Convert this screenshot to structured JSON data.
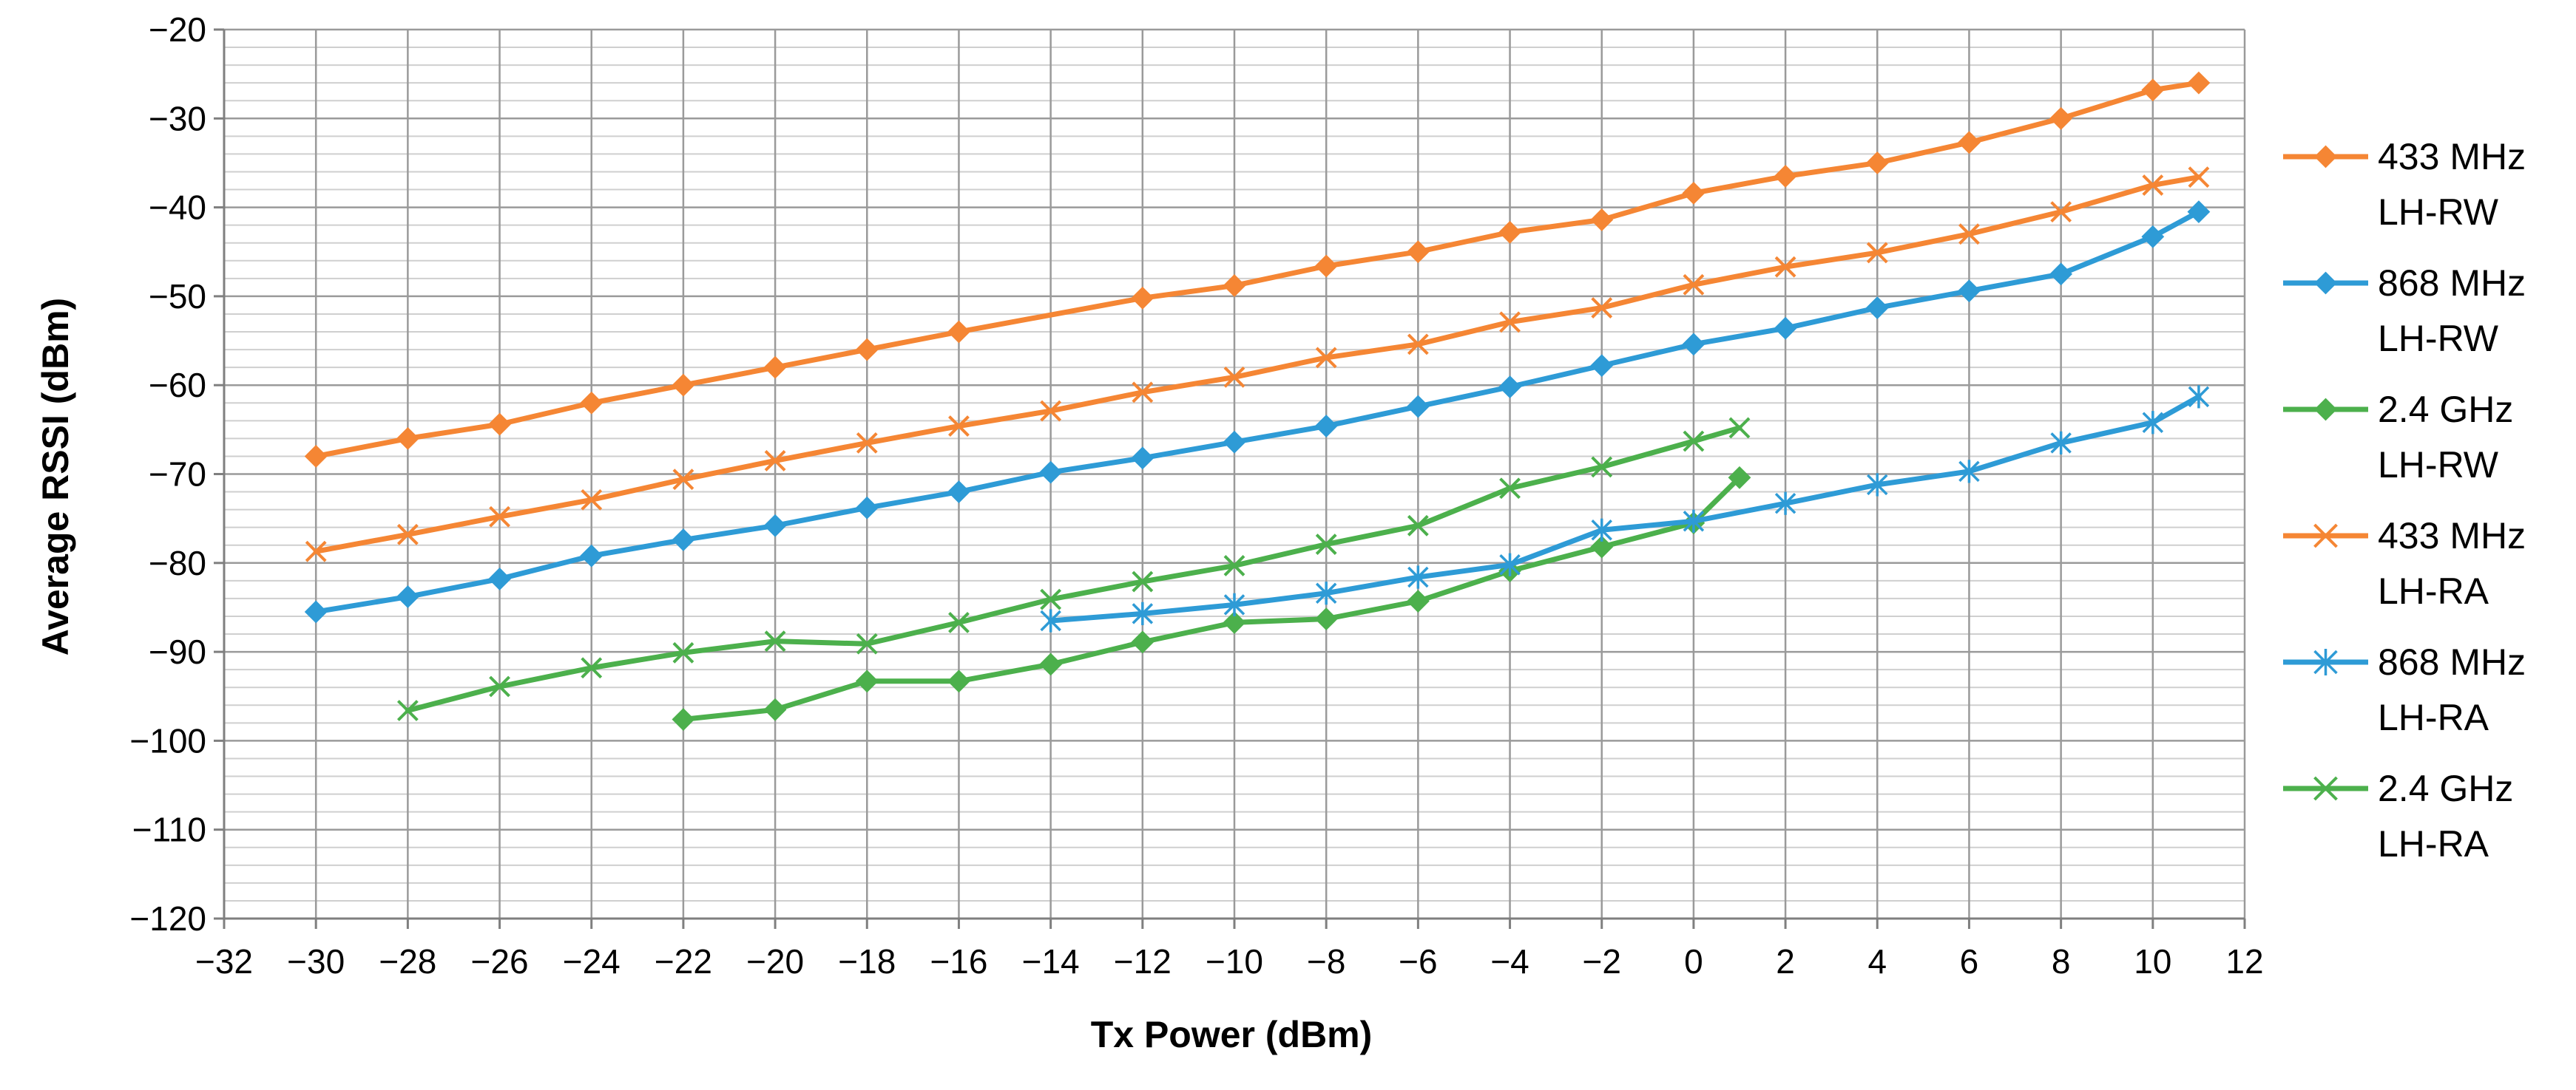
{
  "chart_data": {
    "type": "line",
    "title": "",
    "xlabel": "Tx Power (dBm)",
    "ylabel": "Average RSSI (dBm)",
    "xlim": [
      -32,
      12
    ],
    "ylim": [
      -120,
      -20
    ],
    "x_ticks": [
      -32,
      -30,
      -28,
      -26,
      -24,
      -22,
      -20,
      -18,
      -16,
      -14,
      -12,
      -10,
      -8,
      -6,
      -4,
      -2,
      0,
      2,
      4,
      6,
      8,
      10,
      12
    ],
    "x_tick_labels": [
      "−32",
      "−30",
      "−28",
      "−26",
      "−24",
      "−22",
      "−20",
      "−18",
      "−16",
      "−14",
      "−12",
      "−10",
      "−8",
      "−6",
      "−4",
      "−2",
      "0",
      "2",
      "4",
      "6",
      "8",
      "10",
      "12"
    ],
    "y_ticks": [
      -120,
      -110,
      -100,
      -90,
      -80,
      -70,
      -60,
      -50,
      -40,
      -30,
      -20
    ],
    "y_tick_labels": [
      "−120",
      "−110",
      "−100",
      "−90",
      "−80",
      "−70",
      "−60",
      "−50",
      "−40",
      "−30",
      "−20"
    ],
    "grid": {
      "major": true,
      "minor": true,
      "x_major_step": 2,
      "y_minor_step": 2
    },
    "legend_position": "right",
    "series": [
      {
        "name_line1": "433 MHz",
        "name_line2": "LH-RW",
        "color": "#F58634",
        "marker": "diamond",
        "x": [
          -30,
          -28,
          -26,
          -24,
          -22,
          -20,
          -18,
          -16,
          -12,
          -10,
          -8,
          -6,
          -4,
          -2,
          0,
          2,
          4,
          6,
          8,
          10,
          11
        ],
        "y": [
          -68,
          -66,
          -64.4,
          -62,
          -60,
          -58,
          -56,
          -54,
          -50.2,
          -48.8,
          -46.6,
          -45,
          -42.8,
          -41.4,
          -38.4,
          -36.5,
          -35,
          -32.7,
          -30,
          -26.8,
          -26
        ]
      },
      {
        "name_line1": "868 MHz",
        "name_line2": "LH-RW",
        "color": "#2E9BD6",
        "marker": "diamond",
        "x": [
          -30,
          -28,
          -26,
          -24,
          -22,
          -20,
          -18,
          -16,
          -14,
          -12,
          -10,
          -8,
          -6,
          -4,
          -2,
          0,
          2,
          4,
          6,
          8,
          10,
          11
        ],
        "y": [
          -85.5,
          -83.8,
          -81.8,
          -79.2,
          -77.4,
          -75.8,
          -73.8,
          -72,
          -69.8,
          -68.2,
          -66.4,
          -64.6,
          -62.4,
          -60.2,
          -57.8,
          -55.4,
          -53.6,
          -51.3,
          -49.4,
          -47.5,
          -43.3,
          -40.5
        ]
      },
      {
        "name_line1": "2.4 GHz",
        "name_line2": "LH-RW",
        "color": "#4CB04C",
        "marker": "diamond",
        "x": [
          -22,
          -20,
          -18,
          -16,
          -14,
          -12,
          -10,
          -8,
          -6,
          -4,
          -2,
          0,
          1
        ],
        "y": [
          -97.6,
          -96.5,
          -93.3,
          -93.3,
          -91.4,
          -88.9,
          -86.7,
          -86.3,
          -84.3,
          -80.9,
          -78.2,
          -75.5,
          -70.4
        ]
      },
      {
        "name_line1": "433 MHz",
        "name_line2": "LH-RA",
        "color": "#F58634",
        "marker": "x",
        "x": [
          -30,
          -28,
          -26,
          -24,
          -22,
          -20,
          -18,
          -16,
          -14,
          -12,
          -10,
          -8,
          -6,
          -4,
          -2,
          0,
          2,
          4,
          6,
          8,
          10,
          11
        ],
        "y": [
          -78.7,
          -76.8,
          -74.8,
          -72.9,
          -70.6,
          -68.5,
          -66.5,
          -64.6,
          -62.9,
          -60.8,
          -59.1,
          -56.9,
          -55.4,
          -52.9,
          -51.3,
          -48.7,
          -46.7,
          -45.1,
          -43,
          -40.5,
          -37.5,
          -36.6
        ]
      },
      {
        "name_line1": "868 MHz",
        "name_line2": "LH-RA",
        "color": "#2E9BD6",
        "marker": "asterisk",
        "x": [
          -14,
          -12,
          -10,
          -8,
          -6,
          -4,
          -2,
          0,
          2,
          4,
          6,
          8,
          10,
          11
        ],
        "y": [
          -86.5,
          -85.7,
          -84.7,
          -83.4,
          -81.6,
          -80.2,
          -76.3,
          -75.3,
          -73.3,
          -71.2,
          -69.7,
          -66.5,
          -64.2,
          -61.3
        ]
      },
      {
        "name_line1": "2.4 GHz",
        "name_line2": "LH-RA",
        "color": "#4CB04C",
        "marker": "x",
        "x": [
          -28,
          -26,
          -24,
          -22,
          -20,
          -18,
          -16,
          -14,
          -12,
          -10,
          -8,
          -6,
          -4,
          -2,
          0,
          1
        ],
        "y": [
          -96.6,
          -93.9,
          -91.8,
          -90.1,
          -88.8,
          -89.1,
          -86.7,
          -84.1,
          -82.1,
          -80.3,
          -77.9,
          -75.8,
          -71.6,
          -69.2,
          -66.3,
          -64.8
        ]
      }
    ]
  }
}
